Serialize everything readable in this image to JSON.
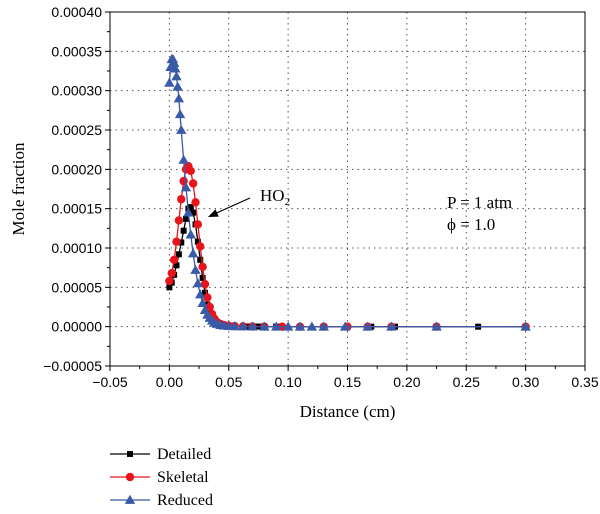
{
  "chart_data": {
    "type": "line",
    "xlabel": "Distance (cm)",
    "ylabel": "Mole fraction",
    "xlim": [
      -0.05,
      0.35
    ],
    "ylim": [
      -5e-05,
      0.0004
    ],
    "x_ticks": [
      "−0.05",
      "0.00",
      "0.05",
      "0.10",
      "0.15",
      "0.20",
      "0.25",
      "0.30",
      "0.35"
    ],
    "y_ticks": [
      "−0.00005",
      "0.00000",
      "0.00005",
      "0.00010",
      "0.00015",
      "0.00020",
      "0.00025",
      "0.00030",
      "0.00035",
      "0.00040"
    ],
    "grid": "dotted",
    "legend_position": "bottom-left",
    "annotations": {
      "species": "HO",
      "species_subscript": "2",
      "condition_p": "P = 1 atm",
      "condition_phi": "ϕ = 1.0"
    },
    "series": [
      {
        "name": "Detailed",
        "color": "#000000",
        "marker": "square",
        "x": [
          0.0,
          0.002,
          0.004,
          0.006,
          0.008,
          0.01,
          0.012,
          0.014,
          0.016,
          0.018,
          0.02,
          0.022,
          0.024,
          0.026,
          0.028,
          0.03,
          0.032,
          0.034,
          0.036,
          0.038,
          0.04,
          0.044,
          0.048,
          0.055,
          0.065,
          0.075,
          0.09,
          0.11,
          0.13,
          0.15,
          0.17,
          0.19,
          0.225,
          0.26,
          0.3
        ],
        "y": [
          5e-05,
          5.6e-05,
          6.6e-05,
          7.8e-05,
          9.2e-05,
          0.000107,
          0.000122,
          0.000137,
          0.00015,
          0.000152,
          0.000145,
          0.00013,
          0.000108,
          8.5e-05,
          6.2e-05,
          4.3e-05,
          2.8e-05,
          1.8e-05,
          1.1e-05,
          7e-06,
          4e-06,
          2e-06,
          1e-06,
          5e-07,
          3e-07,
          2e-07,
          1e-07,
          0.0,
          0.0,
          0.0,
          0.0,
          0.0,
          0.0,
          0.0,
          0.0
        ]
      },
      {
        "name": "Skeletal",
        "color": "#e8141c",
        "marker": "circle",
        "x": [
          0.0,
          0.002,
          0.004,
          0.006,
          0.008,
          0.01,
          0.012,
          0.014,
          0.016,
          0.018,
          0.02,
          0.022,
          0.024,
          0.026,
          0.028,
          0.03,
          0.032,
          0.034,
          0.036,
          0.038,
          0.04,
          0.043,
          0.046,
          0.05,
          0.055,
          0.062,
          0.07,
          0.08,
          0.095,
          0.11,
          0.13,
          0.15,
          0.167,
          0.187,
          0.225,
          0.3
        ],
        "y": [
          5.8e-05,
          6.8e-05,
          8.5e-05,
          0.000108,
          0.000135,
          0.000162,
          0.000185,
          0.0002,
          0.000204,
          0.000198,
          0.000182,
          0.000158,
          0.00013,
          0.000102,
          7.6e-05,
          5.4e-05,
          3.7e-05,
          2.5e-05,
          1.6e-05,
          1e-05,
          6e-06,
          3.5e-06,
          2e-06,
          1.2e-06,
          7e-07,
          4e-07,
          2e-07,
          1e-07,
          0.0,
          0.0,
          0.0,
          0.0,
          0.0,
          0.0,
          0.0,
          0.0
        ]
      },
      {
        "name": "Reduced",
        "color": "#3a5aa8",
        "marker": "triangle",
        "x": [
          0.0,
          0.001,
          0.002,
          0.003,
          0.004,
          0.005,
          0.006,
          0.007,
          0.008,
          0.009,
          0.01,
          0.012,
          0.014,
          0.016,
          0.018,
          0.02,
          0.022,
          0.024,
          0.026,
          0.028,
          0.03,
          0.032,
          0.034,
          0.036,
          0.038,
          0.04,
          0.043,
          0.046,
          0.05,
          0.055,
          0.062,
          0.07,
          0.08,
          0.09,
          0.1,
          0.11,
          0.12,
          0.13,
          0.148,
          0.167,
          0.187,
          0.225,
          0.3
        ],
        "y": [
          0.00031,
          0.00033,
          0.00034,
          0.00034,
          0.000335,
          0.000328,
          0.000318,
          0.000305,
          0.00029,
          0.00027,
          0.00025,
          0.000212,
          0.000177,
          0.000145,
          0.000117,
          9.3e-05,
          7.2e-05,
          5.5e-05,
          4.1e-05,
          3e-05,
          2.1e-05,
          1.5e-05,
          1.1e-05,
          7.5e-06,
          5e-06,
          3.5e-06,
          2e-06,
          1.2e-06,
          7e-07,
          4e-07,
          2e-07,
          1e-07,
          0.0,
          0.0,
          0.0,
          0.0,
          0.0,
          0.0,
          0.0,
          0.0,
          0.0,
          0.0,
          0.0
        ]
      }
    ]
  }
}
